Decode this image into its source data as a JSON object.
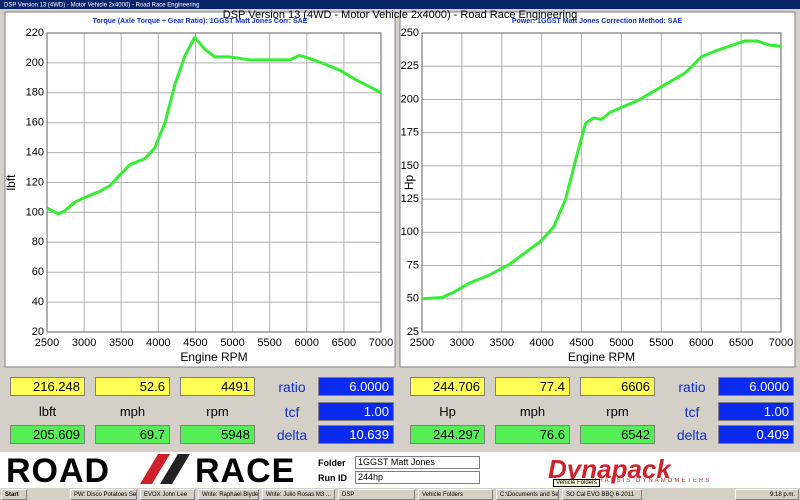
{
  "window_title": "DSP Version 13 (4WD) - Motor Vehicle 2x4000) - Road Race Engineering",
  "header": "DSP Version 13 (4WD - Motor Vehicle 2x4000) - Road Race Engineering",
  "chart_data": [
    {
      "type": "line",
      "title": "Torque (Axle Torque ÷ Gear Ratio): 1GGST Matt Jones    Corr: SAE",
      "x_label": "Engine RPM",
      "y_label": "lbft",
      "color": "#33ee33",
      "grid": true,
      "x": [
        2500,
        2650,
        2740,
        2880,
        3010,
        3210,
        3350,
        3480,
        3620,
        3820,
        3950,
        4090,
        4220,
        4360,
        4490,
        4630,
        4760,
        4970,
        5230,
        5500,
        5770,
        5900,
        6040,
        6250,
        6450,
        6650,
        6850,
        7000
      ],
      "values": [
        103,
        99,
        101,
        107,
        110,
        114,
        118,
        125,
        132,
        136,
        143,
        160,
        185,
        205,
        217,
        209,
        204,
        204,
        202,
        202,
        202,
        205,
        203,
        199,
        195,
        189,
        184,
        180
      ],
      "xlim": [
        2500,
        7000
      ],
      "xticks": [
        2500,
        3000,
        3500,
        4000,
        4500,
        5000,
        5500,
        6000,
        6500,
        7000
      ],
      "ylim": [
        20,
        220
      ],
      "yticks": [
        20,
        40,
        60,
        80,
        100,
        120,
        140,
        160,
        180,
        200,
        220
      ]
    },
    {
      "type": "line",
      "title": "Power: 1GGST Matt Jones    Correction Method: SAE",
      "x_label": "Engine RPM",
      "y_label": "Hp",
      "color": "#33ee33",
      "grid": true,
      "x": [
        2500,
        2750,
        2900,
        3100,
        3350,
        3600,
        3800,
        4000,
        4150,
        4300,
        4450,
        4550,
        4650,
        4750,
        4850,
        5000,
        5200,
        5400,
        5600,
        5800,
        5900,
        6000,
        6200,
        6400,
        6550,
        6700,
        6850,
        7000
      ],
      "values": [
        50,
        51,
        55,
        62,
        68,
        76,
        85,
        94,
        104,
        125,
        160,
        182,
        186,
        185,
        190,
        194,
        199,
        206,
        213,
        220,
        226,
        232,
        237,
        241,
        244,
        244,
        241,
        240
      ],
      "xlim": [
        2500,
        7000
      ],
      "xticks": [
        2500,
        3000,
        3500,
        4000,
        4500,
        5000,
        5500,
        6000,
        6500,
        7000
      ],
      "ylim": [
        25,
        250
      ],
      "yticks": [
        25,
        50,
        75,
        100,
        125,
        150,
        175,
        200,
        225,
        250
      ]
    }
  ],
  "readouts": [
    {
      "rows": [
        [
          "216.248",
          "52.6",
          "4491",
          "ratio",
          "6.0000"
        ],
        [
          "lbft",
          "mph",
          "rpm",
          "tcf",
          "1.00"
        ],
        [
          "205.609",
          "69.7",
          "5948",
          "delta",
          "10.639"
        ]
      ]
    },
    {
      "rows": [
        [
          "244.706",
          "77.4",
          "6606",
          "ratio",
          "6.0000"
        ],
        [
          "Hp",
          "mph",
          "rpm",
          "tcf",
          "1.00"
        ],
        [
          "244.297",
          "76.6",
          "6542",
          "delta",
          "0.409"
        ]
      ]
    }
  ],
  "footer": {
    "logo_left": "ROAD",
    "logo_right": "RACE",
    "folder_label": "Folder",
    "folder": "1GGST Matt Jones",
    "run_id_label": "Run ID",
    "run_id": "244hp",
    "brand": "Dynapack",
    "brand_sub": "CHASSIS DYNAMOMETERS",
    "tooltip": "Vehicle Folders"
  },
  "taskbar": {
    "start": "Start",
    "items": [
      "PW: Disco Potatoes Se...",
      "EVOX John Lee",
      "Write: Raphael Blyden ...",
      "Write: Julio Rosas M3 ...",
      "DSP",
      "Vehicle Folders",
      "C:\\Documents and Se...",
      "SO Cal EVO BBQ 6-2011"
    ],
    "clock": "9:18 p.m."
  }
}
